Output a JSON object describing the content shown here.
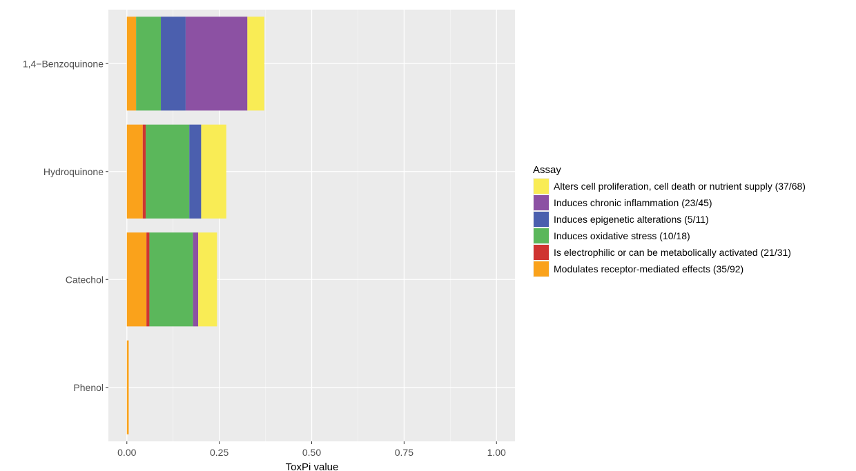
{
  "chart_data": {
    "type": "bar",
    "orientation": "horizontal",
    "stacked": true,
    "xlabel": "ToxPi value",
    "ylabel": "",
    "xlim": [
      -0.05,
      1.05
    ],
    "x_ticks": [
      0.0,
      0.25,
      0.5,
      0.75,
      1.0
    ],
    "x_tick_labels": [
      "0.00",
      "0.25",
      "0.50",
      "0.75",
      "1.00"
    ],
    "categories": [
      "1,4−Benzoquinone",
      "Hydroquinone",
      "Catechol",
      "Phenol"
    ],
    "grid": true,
    "legend": {
      "title": "Assay",
      "position": "right"
    },
    "series": [
      {
        "name": "Modulates receptor-mediated effects (35/92)",
        "color": "#FAA21B",
        "values": [
          0.025,
          0.043,
          0.053,
          0.005
        ]
      },
      {
        "name": "Is electrophilic or can be metabolically activated (21/31)",
        "color": "#CF3431",
        "values": [
          0.0,
          0.008,
          0.008,
          0.0
        ]
      },
      {
        "name": "Induces oxidative stress (10/18)",
        "color": "#5BB75B",
        "values": [
          0.067,
          0.118,
          0.118,
          0.0
        ]
      },
      {
        "name": "Induces epigenetic alterations (5/11)",
        "color": "#4B5FAE",
        "values": [
          0.067,
          0.032,
          0.0,
          0.0
        ]
      },
      {
        "name": "Induces chronic inflammation (23/45)",
        "color": "#8C51A3",
        "values": [
          0.167,
          0.0,
          0.014,
          0.0
        ]
      },
      {
        "name": "Alters cell proliferation, cell death or nutrient supply (37/68)",
        "color": "#F9EC55",
        "values": [
          0.046,
          0.068,
          0.051,
          0.0
        ]
      }
    ],
    "legend_order": [
      5,
      4,
      3,
      2,
      1,
      0
    ]
  }
}
